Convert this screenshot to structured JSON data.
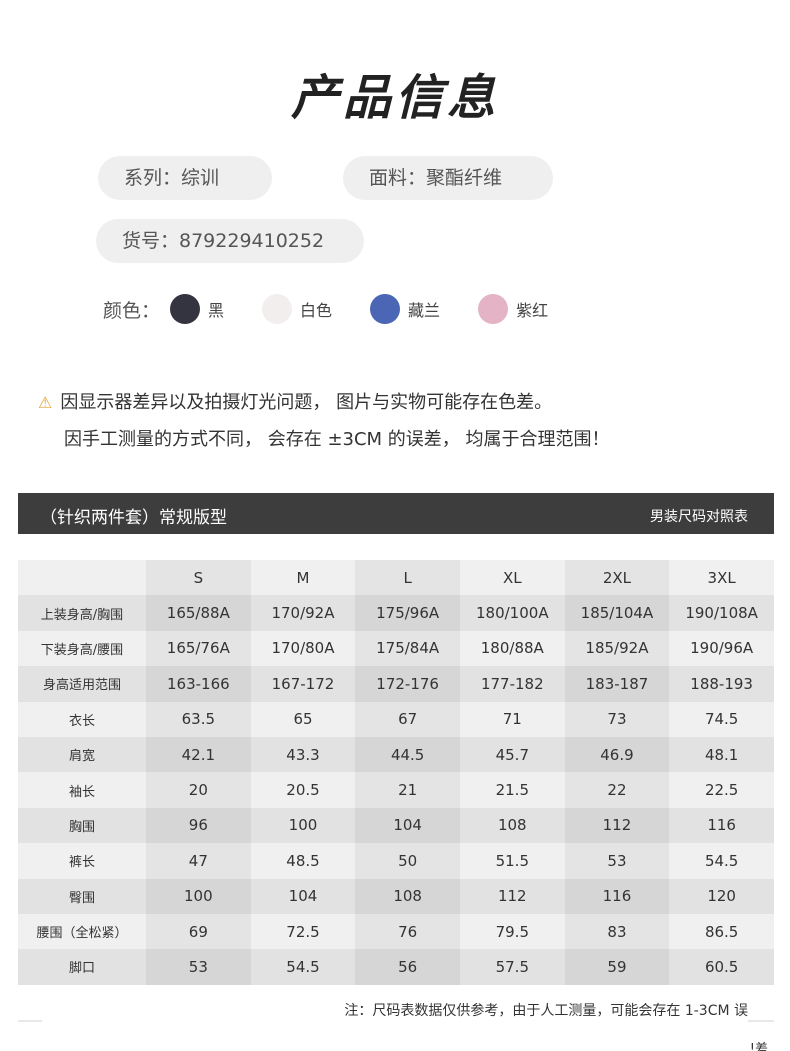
{
  "title": "产品信息",
  "info": {
    "series": "系列：综训",
    "fabric": "面料：聚酯纤维",
    "sku": "货号：879229410252"
  },
  "colors": {
    "label": "颜色：",
    "items": [
      {
        "name": "黑",
        "hex": "#33343f"
      },
      {
        "name": "白色",
        "hex": "#f2eeee"
      },
      {
        "name": "藏兰",
        "hex": "#4a66b4"
      },
      {
        "name": "紫红",
        "hex": "#e4b3c6"
      }
    ]
  },
  "notes": {
    "icon": "warning-triangle-icon",
    "line1": "因显示器差异以及拍摄灯光问题， 图片与实物可能存在色差。",
    "line2": "因手工测量的方式不同， 会存在 ±3CM 的误差， 均属于合理范围！"
  },
  "size_chart": {
    "title": "（针织两件套）常规版型",
    "subtitle": "男装尺码对照表",
    "headers": [
      "",
      "S",
      "M",
      "L",
      "XL",
      "2XL",
      "3XL"
    ],
    "rows": [
      [
        "上装身高/胸围",
        "165/88A",
        "170/92A",
        "175/96A",
        "180/100A",
        "185/104A",
        "190/108A"
      ],
      [
        "下装身高/腰围",
        "165/76A",
        "170/80A",
        "175/84A",
        "180/88A",
        "185/92A",
        "190/96A"
      ],
      [
        "身高适用范围",
        "163-166",
        "167-172",
        "172-176",
        "177-182",
        "183-187",
        "188-193"
      ],
      [
        "衣长",
        "63.5",
        "65",
        "67",
        "71",
        "73",
        "74.5"
      ],
      [
        "肩宽",
        "42.1",
        "43.3",
        "44.5",
        "45.7",
        "46.9",
        "48.1"
      ],
      [
        "袖长",
        "20",
        "20.5",
        "21",
        "21.5",
        "22",
        "22.5"
      ],
      [
        "胸围",
        "96",
        "100",
        "104",
        "108",
        "112",
        "116"
      ],
      [
        "裤长",
        "47",
        "48.5",
        "50",
        "51.5",
        "53",
        "54.5"
      ],
      [
        "臀围",
        "100",
        "104",
        "108",
        "112",
        "116",
        "120"
      ],
      [
        "腰围（全松紧）",
        "69",
        "72.5",
        "76",
        "79.5",
        "83",
        "86.5"
      ],
      [
        "脚口",
        "53",
        "54.5",
        "56",
        "57.5",
        "59",
        "60.5"
      ]
    ],
    "footnote": "注：尺码表数据仅供参考，由于人工测量，可能会存在 1-3CM 误",
    "footnote_tail": "!差"
  }
}
